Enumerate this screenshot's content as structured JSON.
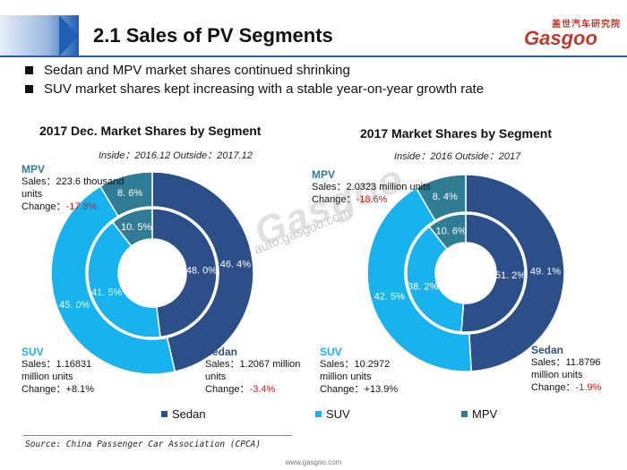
{
  "header": {
    "title": "2.1 Sales of PV Segments",
    "logo_cn": "盖世汽车研究院",
    "logo_main": "Gasgoo"
  },
  "bullets": [
    "Sedan and MPV market shares continued shrinking",
    "SUV market shares kept increasing with a stable year-on-year growth rate"
  ],
  "colors": {
    "sedan": "#2c4f8a",
    "suv": "#18b2ef",
    "mpv": "#2f7c94"
  },
  "chart_data": [
    {
      "type": "pie",
      "title": "2017 Dec. Market Shares by Segment",
      "subtitle": "Inside：2016.12 Outside：2017.12",
      "categories": [
        "Sedan",
        "SUV",
        "MPV"
      ],
      "series": [
        {
          "name": "Inside (2016.12)",
          "values": [
            48.0,
            41.5,
            10.5
          ],
          "labels": [
            "48. 0%",
            "41. 5%",
            "10. 5%"
          ]
        },
        {
          "name": "Outside (2017.12)",
          "values": [
            46.4,
            45.0,
            8.6
          ],
          "labels": [
            "46. 4%",
            "45. 0%",
            "8. 6%"
          ]
        }
      ],
      "annotations": {
        "mpv": {
          "name": "MPV",
          "sales": "Sales：223.6 thousand",
          "sales2": "units",
          "change_label": "Change：",
          "change": "-17.8%"
        },
        "suv": {
          "name": "SUV",
          "sales": "Sales：1.16831",
          "sales2": "million units",
          "change_label": "Change：",
          "change": "+8.1%"
        },
        "sedan": {
          "name": "Sedan",
          "sales": "Sales：1.2067 million",
          "sales2": "units",
          "change_label": "Change：",
          "change": "-3.4%"
        }
      }
    },
    {
      "type": "pie",
      "title": "2017 Market Shares by Segment",
      "subtitle": "Inside：2016 Outside：2017",
      "categories": [
        "Sedan",
        "SUV",
        "MPV"
      ],
      "series": [
        {
          "name": "Inside (2016)",
          "values": [
            51.2,
            38.2,
            10.6
          ],
          "labels": [
            "51. 2%",
            "38. 2%",
            "10. 6%"
          ]
        },
        {
          "name": "Outside (2017)",
          "values": [
            49.1,
            42.5,
            8.4
          ],
          "labels": [
            "49. 1%",
            "42. 5%",
            "8. 4%"
          ]
        }
      ],
      "annotations": {
        "mpv": {
          "name": "MPV",
          "sales": "Sales：2.0323 million units",
          "sales2": "",
          "change_label": "Change：",
          "change": "-18.6%"
        },
        "suv": {
          "name": "SUV",
          "sales": "Sales：10.2972",
          "sales2": "million units",
          "change_label": "Change：",
          "change": "+13.9%"
        },
        "sedan": {
          "name": "Sedan",
          "sales": "Sales：11.8796",
          "sales2": "million units",
          "change_label": "Change：",
          "change": "-1.9%"
        }
      }
    }
  ],
  "legend": [
    "Sedan",
    "SUV",
    "MPV"
  ],
  "source": "Source: China Passenger Car Association (CPCA)",
  "watermark": {
    "brand": "Gasgoo",
    "url": "auto.gasgoo.com"
  },
  "footer": "www.gasgoo.com"
}
